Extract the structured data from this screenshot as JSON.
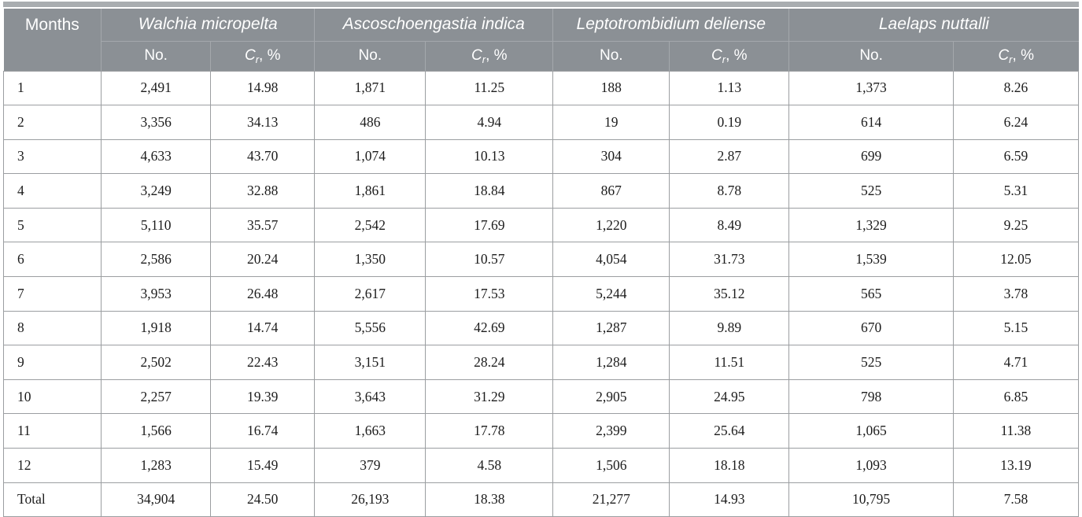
{
  "colors": {
    "header_bg": "#8B9095",
    "top_rule": "#A9ADB0",
    "header_line": "#A4A8AC",
    "body_border": "#9B9EA1",
    "header_text": "#FFFFFF",
    "body_text": "#1C1C1C",
    "page_bg": "#FFFFFF"
  },
  "table": {
    "months_label": "Months",
    "species": [
      {
        "name": "Walchia micropelta"
      },
      {
        "name": "Ascoschoengastia indica"
      },
      {
        "name": "Leptotrombidium deliense"
      },
      {
        "name": "Laelaps nuttalli"
      }
    ],
    "subheader": {
      "no": "No.",
      "cr_c": "C",
      "cr_sub": "r",
      "cr_tail": ", %"
    },
    "rows": [
      {
        "month": "1",
        "values": [
          "2,491",
          "14.98",
          "1,871",
          "11.25",
          "188",
          "1.13",
          "1,373",
          "8.26"
        ]
      },
      {
        "month": "2",
        "values": [
          "3,356",
          "34.13",
          "486",
          "4.94",
          "19",
          "0.19",
          "614",
          "6.24"
        ]
      },
      {
        "month": "3",
        "values": [
          "4,633",
          "43.70",
          "1,074",
          "10.13",
          "304",
          "2.87",
          "699",
          "6.59"
        ]
      },
      {
        "month": "4",
        "values": [
          "3,249",
          "32.88",
          "1,861",
          "18.84",
          "867",
          "8.78",
          "525",
          "5.31"
        ]
      },
      {
        "month": "5",
        "values": [
          "5,110",
          "35.57",
          "2,542",
          "17.69",
          "1,220",
          "8.49",
          "1,329",
          "9.25"
        ]
      },
      {
        "month": "6",
        "values": [
          "2,586",
          "20.24",
          "1,350",
          "10.57",
          "4,054",
          "31.73",
          "1,539",
          "12.05"
        ]
      },
      {
        "month": "7",
        "values": [
          "3,953",
          "26.48",
          "2,617",
          "17.53",
          "5,244",
          "35.12",
          "565",
          "3.78"
        ]
      },
      {
        "month": "8",
        "values": [
          "1,918",
          "14.74",
          "5,556",
          "42.69",
          "1,287",
          "9.89",
          "670",
          "5.15"
        ]
      },
      {
        "month": "9",
        "values": [
          "2,502",
          "22.43",
          "3,151",
          "28.24",
          "1,284",
          "11.51",
          "525",
          "4.71"
        ]
      },
      {
        "month": "10",
        "values": [
          "2,257",
          "19.39",
          "3,643",
          "31.29",
          "2,905",
          "24.95",
          "798",
          "6.85"
        ]
      },
      {
        "month": "11",
        "values": [
          "1,566",
          "16.74",
          "1,663",
          "17.78",
          "2,399",
          "25.64",
          "1,065",
          "11.38"
        ]
      },
      {
        "month": "12",
        "values": [
          "1,283",
          "15.49",
          "379",
          "4.58",
          "1,506",
          "18.18",
          "1,093",
          "13.19"
        ]
      },
      {
        "month": "Total",
        "values": [
          "34,904",
          "24.50",
          "26,193",
          "18.38",
          "21,277",
          "14.93",
          "10,795",
          "7.58"
        ]
      }
    ]
  }
}
